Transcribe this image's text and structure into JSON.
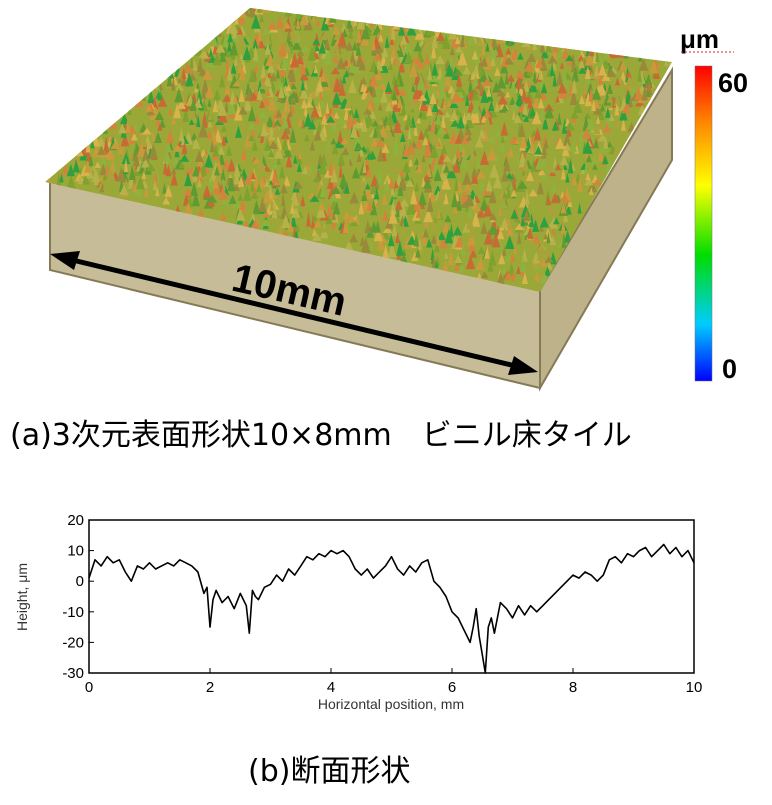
{
  "figure_a": {
    "dimension_label": "10mm",
    "caption": "(a)3次元表面形状10×8mm　ビニル床タイル",
    "colorbar": {
      "unit": "μm",
      "max_label": "60",
      "min_label": "0",
      "max": 60,
      "min": 0,
      "colors": [
        "#0000ff",
        "#00ccff",
        "#00dd00",
        "#ffff00",
        "#ff8800",
        "#ff0000"
      ]
    }
  },
  "figure_b": {
    "caption": "(b)断面形状"
  },
  "chart_data": {
    "type": "line",
    "xlabel": "Horizontal position, mm",
    "ylabel": "Height, μm",
    "xlim": [
      0,
      10
    ],
    "ylim": [
      -30,
      20
    ],
    "xticks": [
      "0",
      "2",
      "4",
      "6",
      "8",
      "10"
    ],
    "yticks": [
      "20",
      "10",
      "0",
      "-10",
      "-20",
      "-30"
    ],
    "grid": false,
    "series": [
      {
        "color": "#000000",
        "x": [
          0,
          0.1,
          0.2,
          0.3,
          0.4,
          0.5,
          0.6,
          0.7,
          0.8,
          0.9,
          1.0,
          1.1,
          1.2,
          1.3,
          1.4,
          1.5,
          1.6,
          1.7,
          1.8,
          1.9,
          1.95,
          2.0,
          2.05,
          2.1,
          2.2,
          2.3,
          2.4,
          2.5,
          2.6,
          2.65,
          2.7,
          2.75,
          2.8,
          2.9,
          3.0,
          3.1,
          3.2,
          3.3,
          3.4,
          3.5,
          3.6,
          3.7,
          3.8,
          3.9,
          4.0,
          4.1,
          4.2,
          4.3,
          4.4,
          4.5,
          4.6,
          4.7,
          4.8,
          4.9,
          5.0,
          5.1,
          5.2,
          5.3,
          5.4,
          5.5,
          5.6,
          5.7,
          5.8,
          5.9,
          6.0,
          6.1,
          6.2,
          6.3,
          6.35,
          6.4,
          6.45,
          6.5,
          6.55,
          6.6,
          6.65,
          6.7,
          6.8,
          6.9,
          7.0,
          7.1,
          7.2,
          7.3,
          7.4,
          7.5,
          7.6,
          7.7,
          7.8,
          7.9,
          8.0,
          8.1,
          8.2,
          8.3,
          8.4,
          8.5,
          8.6,
          8.7,
          8.8,
          8.9,
          9.0,
          9.1,
          9.2,
          9.3,
          9.4,
          9.5,
          9.6,
          9.7,
          9.8,
          9.9,
          10.0
        ],
        "y": [
          1,
          7,
          5,
          8,
          6,
          7,
          3,
          0,
          5,
          4,
          6,
          4,
          5,
          6,
          5,
          7,
          6,
          5,
          3,
          -4,
          -2,
          -15,
          -6,
          -3,
          -7,
          -5,
          -9,
          -4,
          -8,
          -17,
          -3,
          -5,
          -6,
          -2,
          -1,
          2,
          0,
          4,
          2,
          5,
          8,
          7,
          9,
          8,
          10,
          9,
          10,
          8,
          4,
          2,
          4,
          1,
          3,
          5,
          8,
          4,
          2,
          5,
          3,
          6,
          7,
          0,
          -2,
          -5,
          -10,
          -12,
          -16,
          -20,
          -15,
          -9,
          -18,
          -24,
          -30,
          -15,
          -12,
          -17,
          -7,
          -9,
          -12,
          -8,
          -11,
          -8,
          -10,
          -8,
          -6,
          -4,
          -2,
          0,
          2,
          1,
          3,
          2,
          0,
          2,
          7,
          8,
          6,
          9,
          8,
          10,
          11,
          8,
          10,
          12,
          9,
          11,
          8,
          10,
          6
        ]
      }
    ]
  }
}
